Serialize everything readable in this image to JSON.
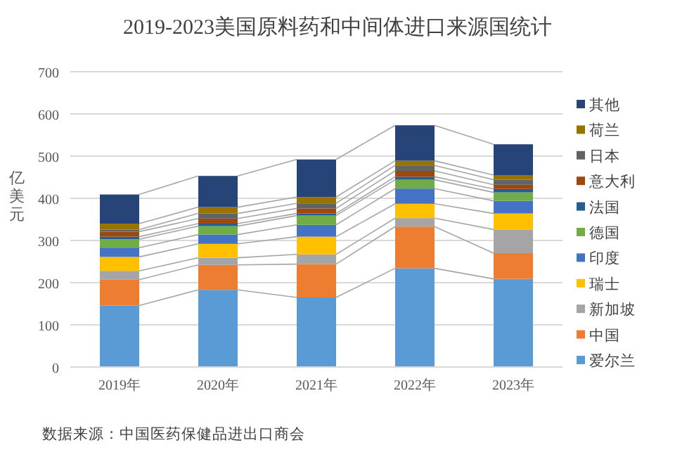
{
  "chart_data": {
    "type": "bar",
    "stacked": true,
    "title": "2019-2023美国原料药和中间体进口来源国统计",
    "ylabel": "亿美元",
    "categories": [
      "2019年",
      "2020年",
      "2021年",
      "2022年",
      "2023年"
    ],
    "series": [
      {
        "name": "爱尔兰",
        "color": "#5b9bd5",
        "values": [
          146,
          183,
          165,
          234,
          209
        ]
      },
      {
        "name": "中国",
        "color": "#ed7d31",
        "values": [
          61,
          59,
          79,
          99,
          61
        ]
      },
      {
        "name": "新加坡",
        "color": "#a5a5a5",
        "values": [
          21,
          17,
          23,
          20,
          56
        ]
      },
      {
        "name": "瑞士",
        "color": "#ffc000",
        "values": [
          33,
          33,
          42,
          34,
          38
        ]
      },
      {
        "name": "印度",
        "color": "#4472c4",
        "values": [
          22,
          22,
          28,
          36,
          30
        ]
      },
      {
        "name": "德国",
        "color": "#70ad47",
        "values": [
          20,
          20,
          22,
          21,
          20
        ]
      },
      {
        "name": "法国",
        "color": "#255e91",
        "values": [
          6,
          6,
          5,
          7,
          8
        ]
      },
      {
        "name": "意大利",
        "color": "#9e480e",
        "values": [
          12,
          12,
          12,
          14,
          10
        ]
      },
      {
        "name": "日本",
        "color": "#636363",
        "values": [
          5,
          12,
          12,
          13,
          12
        ]
      },
      {
        "name": "荷兰",
        "color": "#997300",
        "values": [
          14,
          15,
          15,
          11,
          11
        ]
      },
      {
        "name": "其他",
        "color": "#264478",
        "values": [
          69,
          74,
          89,
          84,
          73
        ]
      }
    ],
    "ylim": [
      0,
      700
    ],
    "yticks": [
      0,
      100,
      200,
      300,
      400,
      500,
      600,
      700
    ],
    "grid": "y",
    "legend": "right",
    "annotations": [
      "数据来源：中国医药保健品进出口商会"
    ]
  }
}
